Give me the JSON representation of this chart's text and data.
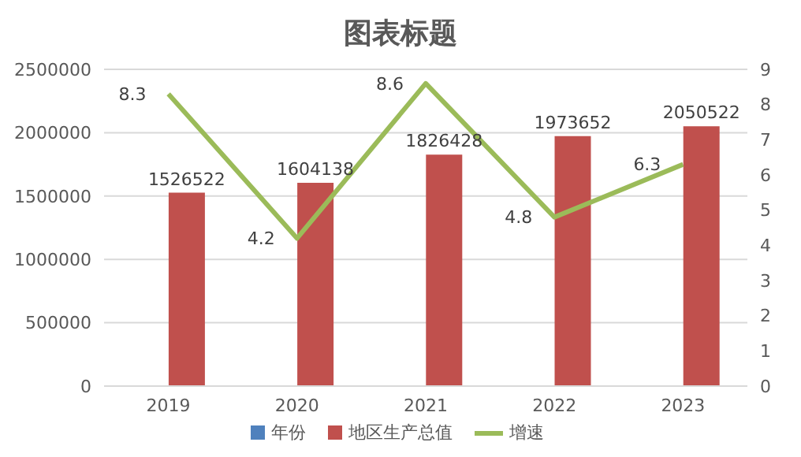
{
  "chart_data": {
    "type": "bar",
    "title": "图表标题",
    "categories": [
      "2019",
      "2020",
      "2021",
      "2022",
      "2023"
    ],
    "series": [
      {
        "name": "年份",
        "color": "#4f81bd",
        "values": [
          null,
          null,
          null,
          null,
          null
        ]
      },
      {
        "name": "地区生产总值",
        "color": "#c0504d",
        "values": [
          1526522,
          1604138,
          1826428,
          1973652,
          2050522
        ]
      },
      {
        "name": "增速",
        "type": "line",
        "axis": "y2",
        "color": "#9bbb59",
        "values": [
          8.3,
          4.2,
          8.6,
          4.8,
          6.3
        ]
      }
    ],
    "ylim": [
      0,
      2500000
    ],
    "yticks": [
      0,
      500000,
      1000000,
      1500000,
      2000000,
      2500000
    ],
    "y2lim": [
      0,
      9
    ],
    "y2ticks": [
      0,
      1,
      2,
      3,
      4,
      5,
      6,
      7,
      8,
      9
    ],
    "grid": "y",
    "legend": "bottom",
    "data_labels": true,
    "marker": "none"
  }
}
